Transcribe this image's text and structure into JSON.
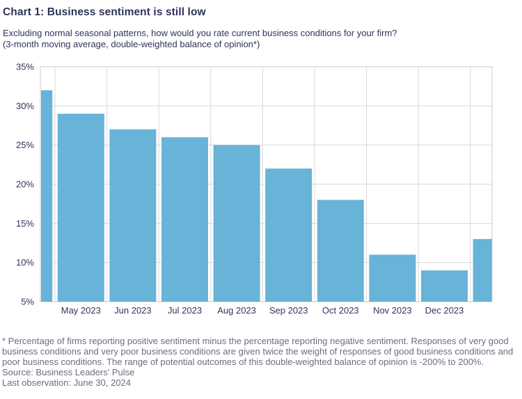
{
  "header": {
    "title": "Chart 1: Business sentiment is still low",
    "subtitle_line1": "Excluding normal seasonal patterns, how would you rate current business conditions for your firm?",
    "subtitle_line2": "(3-month moving average, double-weighted balance of opinion*)"
  },
  "chart_data": {
    "type": "bar",
    "categories": [
      "",
      "May 2023",
      "Jun 2023",
      "Jul 2023",
      "Aug 2023",
      "Sep 2023",
      "Oct 2023",
      "Nov 2023",
      "Dec 2023",
      ""
    ],
    "values": [
      32,
      29,
      27,
      26,
      25,
      22,
      18,
      11,
      9,
      13
    ],
    "title": "",
    "xlabel": "",
    "ylabel": "",
    "ylim": [
      5,
      35
    ],
    "ytick_step": 5,
    "ytick_suffix": "%",
    "grid": "on",
    "legend": "none",
    "layout_hint": "first and last bars are clipped at the left/right plot edges (unlabeled partial months)"
  },
  "footnote": {
    "note": "* Percentage of firms reporting positive sentiment minus the percentage reporting negative sentiment. Responses of very good business conditions and very poor business conditions are given twice the weight of responses of good business conditions and poor business conditions. The range of potential outcomes of this double-weighted balance of opinion is -200% to 200%.",
    "source": "Source: Business Leaders' Pulse",
    "last_observation": "Last observation: June 30, 2024"
  },
  "colors": {
    "title_text": "#2f3359",
    "axis_text": "#31355a",
    "footnote_text": "#6b6b84",
    "bar": "#68b3d8",
    "gridline": "#d9d9d9",
    "plot_border": "#c9c9c9"
  }
}
